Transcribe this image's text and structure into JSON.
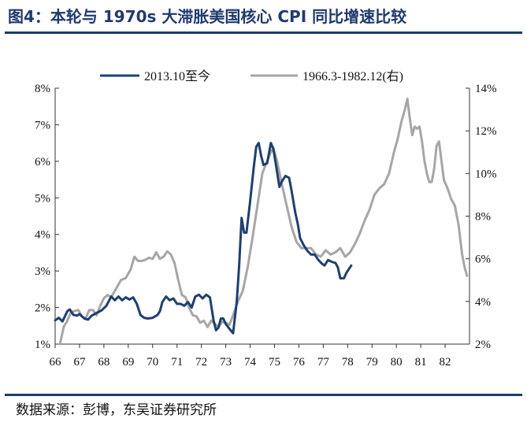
{
  "header": {
    "title": "图4：本轮与 1970s 大滞胀美国核心 CPI 同比增速比较"
  },
  "footer": {
    "source": "数据来源：彭博，东吴证券研究所"
  },
  "chart_data": {
    "type": "line",
    "x_ticks": [
      "66",
      "67",
      "68",
      "69",
      "70",
      "71",
      "72",
      "73",
      "74",
      "75",
      "76",
      "77",
      "78",
      "79",
      "80",
      "81",
      "82"
    ],
    "xlim": [
      66,
      83
    ],
    "y_left": {
      "ylim": [
        1,
        8
      ],
      "ticks": [
        "1%",
        "2%",
        "3%",
        "4%",
        "5%",
        "6%",
        "7%",
        "8%"
      ],
      "tick_values": [
        1,
        2,
        3,
        4,
        5,
        6,
        7,
        8
      ]
    },
    "y_right": {
      "ylim": [
        2,
        14
      ],
      "ticks": [
        "2%",
        "4%",
        "6%",
        "8%",
        "10%",
        "12%",
        "14%"
      ],
      "tick_values": [
        2,
        4,
        6,
        8,
        10,
        12,
        14
      ]
    },
    "grid": false,
    "legend_position": "top",
    "series": [
      {
        "name": "2013.10至今",
        "axis": "left",
        "color": "#1f3f70",
        "points": [
          [
            66.0,
            1.65
          ],
          [
            66.15,
            1.72
          ],
          [
            66.3,
            1.62
          ],
          [
            66.5,
            1.9
          ],
          [
            66.6,
            1.95
          ],
          [
            66.75,
            1.8
          ],
          [
            66.9,
            1.78
          ],
          [
            67.0,
            1.82
          ],
          [
            67.2,
            1.7
          ],
          [
            67.35,
            1.67
          ],
          [
            67.5,
            1.78
          ],
          [
            67.7,
            1.85
          ],
          [
            67.9,
            1.92
          ],
          [
            68.1,
            2.05
          ],
          [
            68.3,
            2.3
          ],
          [
            68.45,
            2.2
          ],
          [
            68.6,
            2.3
          ],
          [
            68.75,
            2.2
          ],
          [
            68.9,
            2.28
          ],
          [
            69.05,
            2.22
          ],
          [
            69.2,
            2.28
          ],
          [
            69.35,
            2.1
          ],
          [
            69.5,
            1.8
          ],
          [
            69.65,
            1.72
          ],
          [
            69.8,
            1.7
          ],
          [
            70.0,
            1.72
          ],
          [
            70.2,
            1.8
          ],
          [
            70.3,
            1.9
          ],
          [
            70.4,
            2.15
          ],
          [
            70.55,
            2.3
          ],
          [
            70.7,
            2.2
          ],
          [
            70.85,
            2.25
          ],
          [
            71.0,
            2.1
          ],
          [
            71.15,
            2.1
          ],
          [
            71.3,
            2.05
          ],
          [
            71.45,
            2.15
          ],
          [
            71.6,
            2.0
          ],
          [
            71.75,
            2.3
          ],
          [
            71.9,
            2.35
          ],
          [
            72.05,
            2.25
          ],
          [
            72.2,
            2.35
          ],
          [
            72.35,
            2.28
          ],
          [
            72.5,
            1.65
          ],
          [
            72.6,
            1.38
          ],
          [
            72.7,
            1.45
          ],
          [
            72.8,
            1.7
          ],
          [
            72.9,
            1.7
          ],
          [
            73.0,
            1.55
          ],
          [
            73.15,
            1.42
          ],
          [
            73.3,
            1.3
          ],
          [
            73.45,
            2.15
          ],
          [
            73.55,
            3.15
          ],
          [
            73.65,
            4.45
          ],
          [
            73.75,
            4.05
          ],
          [
            73.85,
            4.05
          ],
          [
            74.0,
            4.9
          ],
          [
            74.15,
            5.85
          ],
          [
            74.25,
            6.4
          ],
          [
            74.35,
            6.5
          ],
          [
            74.45,
            6.15
          ],
          [
            74.55,
            5.9
          ],
          [
            74.7,
            5.95
          ],
          [
            74.85,
            6.5
          ],
          [
            74.95,
            6.35
          ],
          [
            75.05,
            5.95
          ],
          [
            75.2,
            5.3
          ],
          [
            75.3,
            5.45
          ],
          [
            75.45,
            5.6
          ],
          [
            75.6,
            5.55
          ],
          [
            75.7,
            5.2
          ],
          [
            75.85,
            4.6
          ],
          [
            75.95,
            4.3
          ],
          [
            76.05,
            3.9
          ],
          [
            76.2,
            3.7
          ],
          [
            76.35,
            3.55
          ],
          [
            76.5,
            3.45
          ],
          [
            76.65,
            3.45
          ],
          [
            76.8,
            3.3
          ],
          [
            76.95,
            3.2
          ],
          [
            77.05,
            3.15
          ],
          [
            77.2,
            3.3
          ],
          [
            77.35,
            3.25
          ],
          [
            77.5,
            3.22
          ],
          [
            77.6,
            3.1
          ],
          [
            77.7,
            2.8
          ],
          [
            77.85,
            2.8
          ],
          [
            77.95,
            2.95
          ],
          [
            78.05,
            3.05
          ],
          [
            78.15,
            3.15
          ]
        ]
      },
      {
        "name": "1966.3-1982.12(右)",
        "axis": "right",
        "color": "#a6a6a6",
        "points": [
          [
            66.2,
            2.0
          ],
          [
            66.35,
            2.8
          ],
          [
            66.5,
            3.1
          ],
          [
            66.65,
            3.5
          ],
          [
            66.8,
            3.55
          ],
          [
            66.95,
            3.6
          ],
          [
            67.1,
            3.3
          ],
          [
            67.25,
            3.2
          ],
          [
            67.4,
            3.6
          ],
          [
            67.55,
            3.6
          ],
          [
            67.7,
            3.35
          ],
          [
            67.85,
            3.8
          ],
          [
            68.0,
            4.15
          ],
          [
            68.15,
            4.3
          ],
          [
            68.3,
            4.2
          ],
          [
            68.5,
            4.6
          ],
          [
            68.7,
            5.0
          ],
          [
            68.9,
            5.1
          ],
          [
            69.1,
            5.5
          ],
          [
            69.25,
            6.1
          ],
          [
            69.4,
            5.9
          ],
          [
            69.55,
            5.9
          ],
          [
            69.7,
            5.95
          ],
          [
            69.85,
            6.05
          ],
          [
            70.0,
            6.0
          ],
          [
            70.15,
            6.3
          ],
          [
            70.3,
            6.0
          ],
          [
            70.45,
            6.1
          ],
          [
            70.6,
            6.35
          ],
          [
            70.75,
            6.2
          ],
          [
            70.9,
            5.8
          ],
          [
            71.05,
            5.0
          ],
          [
            71.2,
            4.3
          ],
          [
            71.35,
            4.2
          ],
          [
            71.5,
            3.7
          ],
          [
            71.65,
            3.35
          ],
          [
            71.8,
            3.3
          ],
          [
            71.95,
            3.0
          ],
          [
            72.1,
            3.1
          ],
          [
            72.25,
            2.8
          ],
          [
            72.4,
            3.1
          ],
          [
            72.55,
            2.95
          ],
          [
            72.7,
            2.8
          ],
          [
            72.85,
            3.05
          ],
          [
            73.0,
            3.0
          ],
          [
            73.15,
            2.9
          ],
          [
            73.3,
            3.35
          ],
          [
            73.5,
            4.0
          ],
          [
            73.7,
            4.5
          ],
          [
            73.9,
            5.6
          ],
          [
            74.1,
            7.0
          ],
          [
            74.3,
            8.5
          ],
          [
            74.5,
            10.0
          ],
          [
            74.7,
            10.6
          ],
          [
            74.85,
            11.0
          ],
          [
            74.95,
            11.2
          ],
          [
            75.1,
            10.6
          ],
          [
            75.3,
            9.5
          ],
          [
            75.5,
            8.5
          ],
          [
            75.7,
            7.5
          ],
          [
            75.9,
            6.8
          ],
          [
            76.1,
            6.5
          ],
          [
            76.3,
            6.5
          ],
          [
            76.5,
            6.5
          ],
          [
            76.7,
            6.2
          ],
          [
            76.9,
            6.1
          ],
          [
            77.1,
            6.4
          ],
          [
            77.3,
            6.2
          ],
          [
            77.5,
            6.3
          ],
          [
            77.7,
            6.5
          ],
          [
            77.9,
            6.1
          ],
          [
            78.1,
            6.3
          ],
          [
            78.3,
            6.7
          ],
          [
            78.5,
            7.2
          ],
          [
            78.7,
            7.8
          ],
          [
            78.9,
            8.3
          ],
          [
            79.1,
            9.0
          ],
          [
            79.3,
            9.3
          ],
          [
            79.5,
            9.5
          ],
          [
            79.7,
            10.0
          ],
          [
            79.9,
            11.0
          ],
          [
            80.05,
            11.6
          ],
          [
            80.2,
            12.4
          ],
          [
            80.35,
            13.0
          ],
          [
            80.45,
            13.5
          ],
          [
            80.55,
            12.6
          ],
          [
            80.65,
            11.8
          ],
          [
            80.75,
            12.2
          ],
          [
            80.85,
            12.1
          ],
          [
            80.95,
            12.2
          ],
          [
            81.05,
            11.5
          ],
          [
            81.15,
            10.6
          ],
          [
            81.25,
            10.0
          ],
          [
            81.35,
            9.6
          ],
          [
            81.45,
            9.6
          ],
          [
            81.55,
            10.2
          ],
          [
            81.65,
            11.3
          ],
          [
            81.75,
            11.5
          ],
          [
            81.85,
            10.6
          ],
          [
            81.95,
            9.7
          ],
          [
            82.1,
            9.3
          ],
          [
            82.25,
            8.8
          ],
          [
            82.4,
            8.5
          ],
          [
            82.55,
            7.6
          ],
          [
            82.7,
            6.2
          ],
          [
            82.8,
            5.6
          ],
          [
            82.9,
            5.2
          ]
        ]
      }
    ]
  }
}
